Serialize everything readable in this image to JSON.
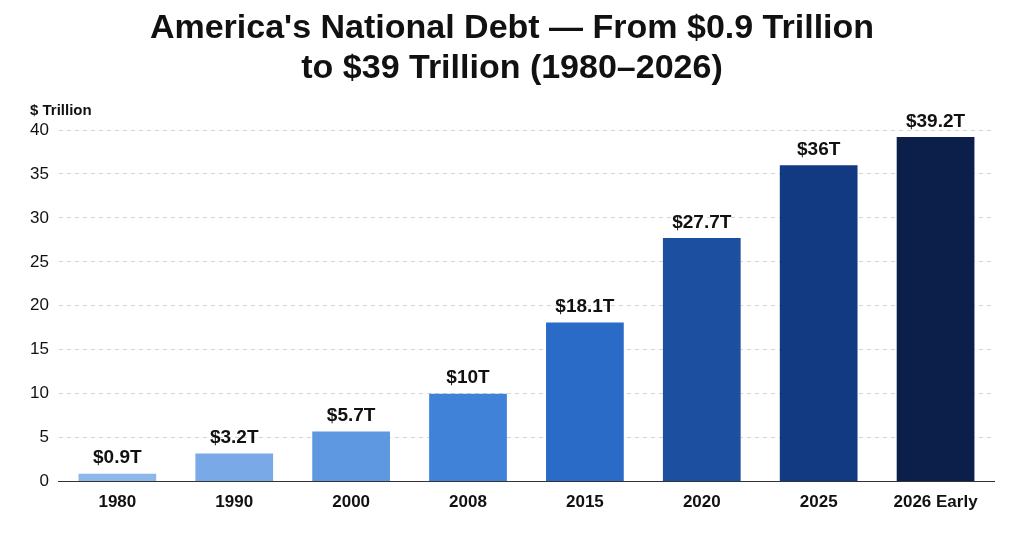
{
  "chart_data": {
    "type": "bar",
    "title": "America's National Debt — From $0.9 Trillion to $39 Trillion (1980–2026)",
    "ylabel": "$ Trillion",
    "categories": [
      "1980",
      "1990",
      "2000",
      "2008",
      "2015",
      "2020",
      "2025",
      "2026 Early"
    ],
    "values": [
      0.9,
      3.2,
      5.7,
      10,
      18.1,
      27.7,
      36,
      39.2
    ],
    "colors": [
      "#8fb8ea",
      "#79a9e6",
      "#5e98e0",
      "#3f82d8",
      "#2a6bc8",
      "#1c4fa0",
      "#123a82",
      "#0b1f4a"
    ],
    "value_labels": [
      "$0.9T",
      "$3.2T",
      "$5.7T",
      "$10T",
      "$18.1T",
      "$27.7T",
      "$36T",
      "$39.2T"
    ],
    "ylim": [
      0,
      40
    ],
    "yticks": [
      0,
      5,
      10,
      15,
      20,
      25,
      30,
      35,
      40
    ],
    "grid": "y"
  }
}
